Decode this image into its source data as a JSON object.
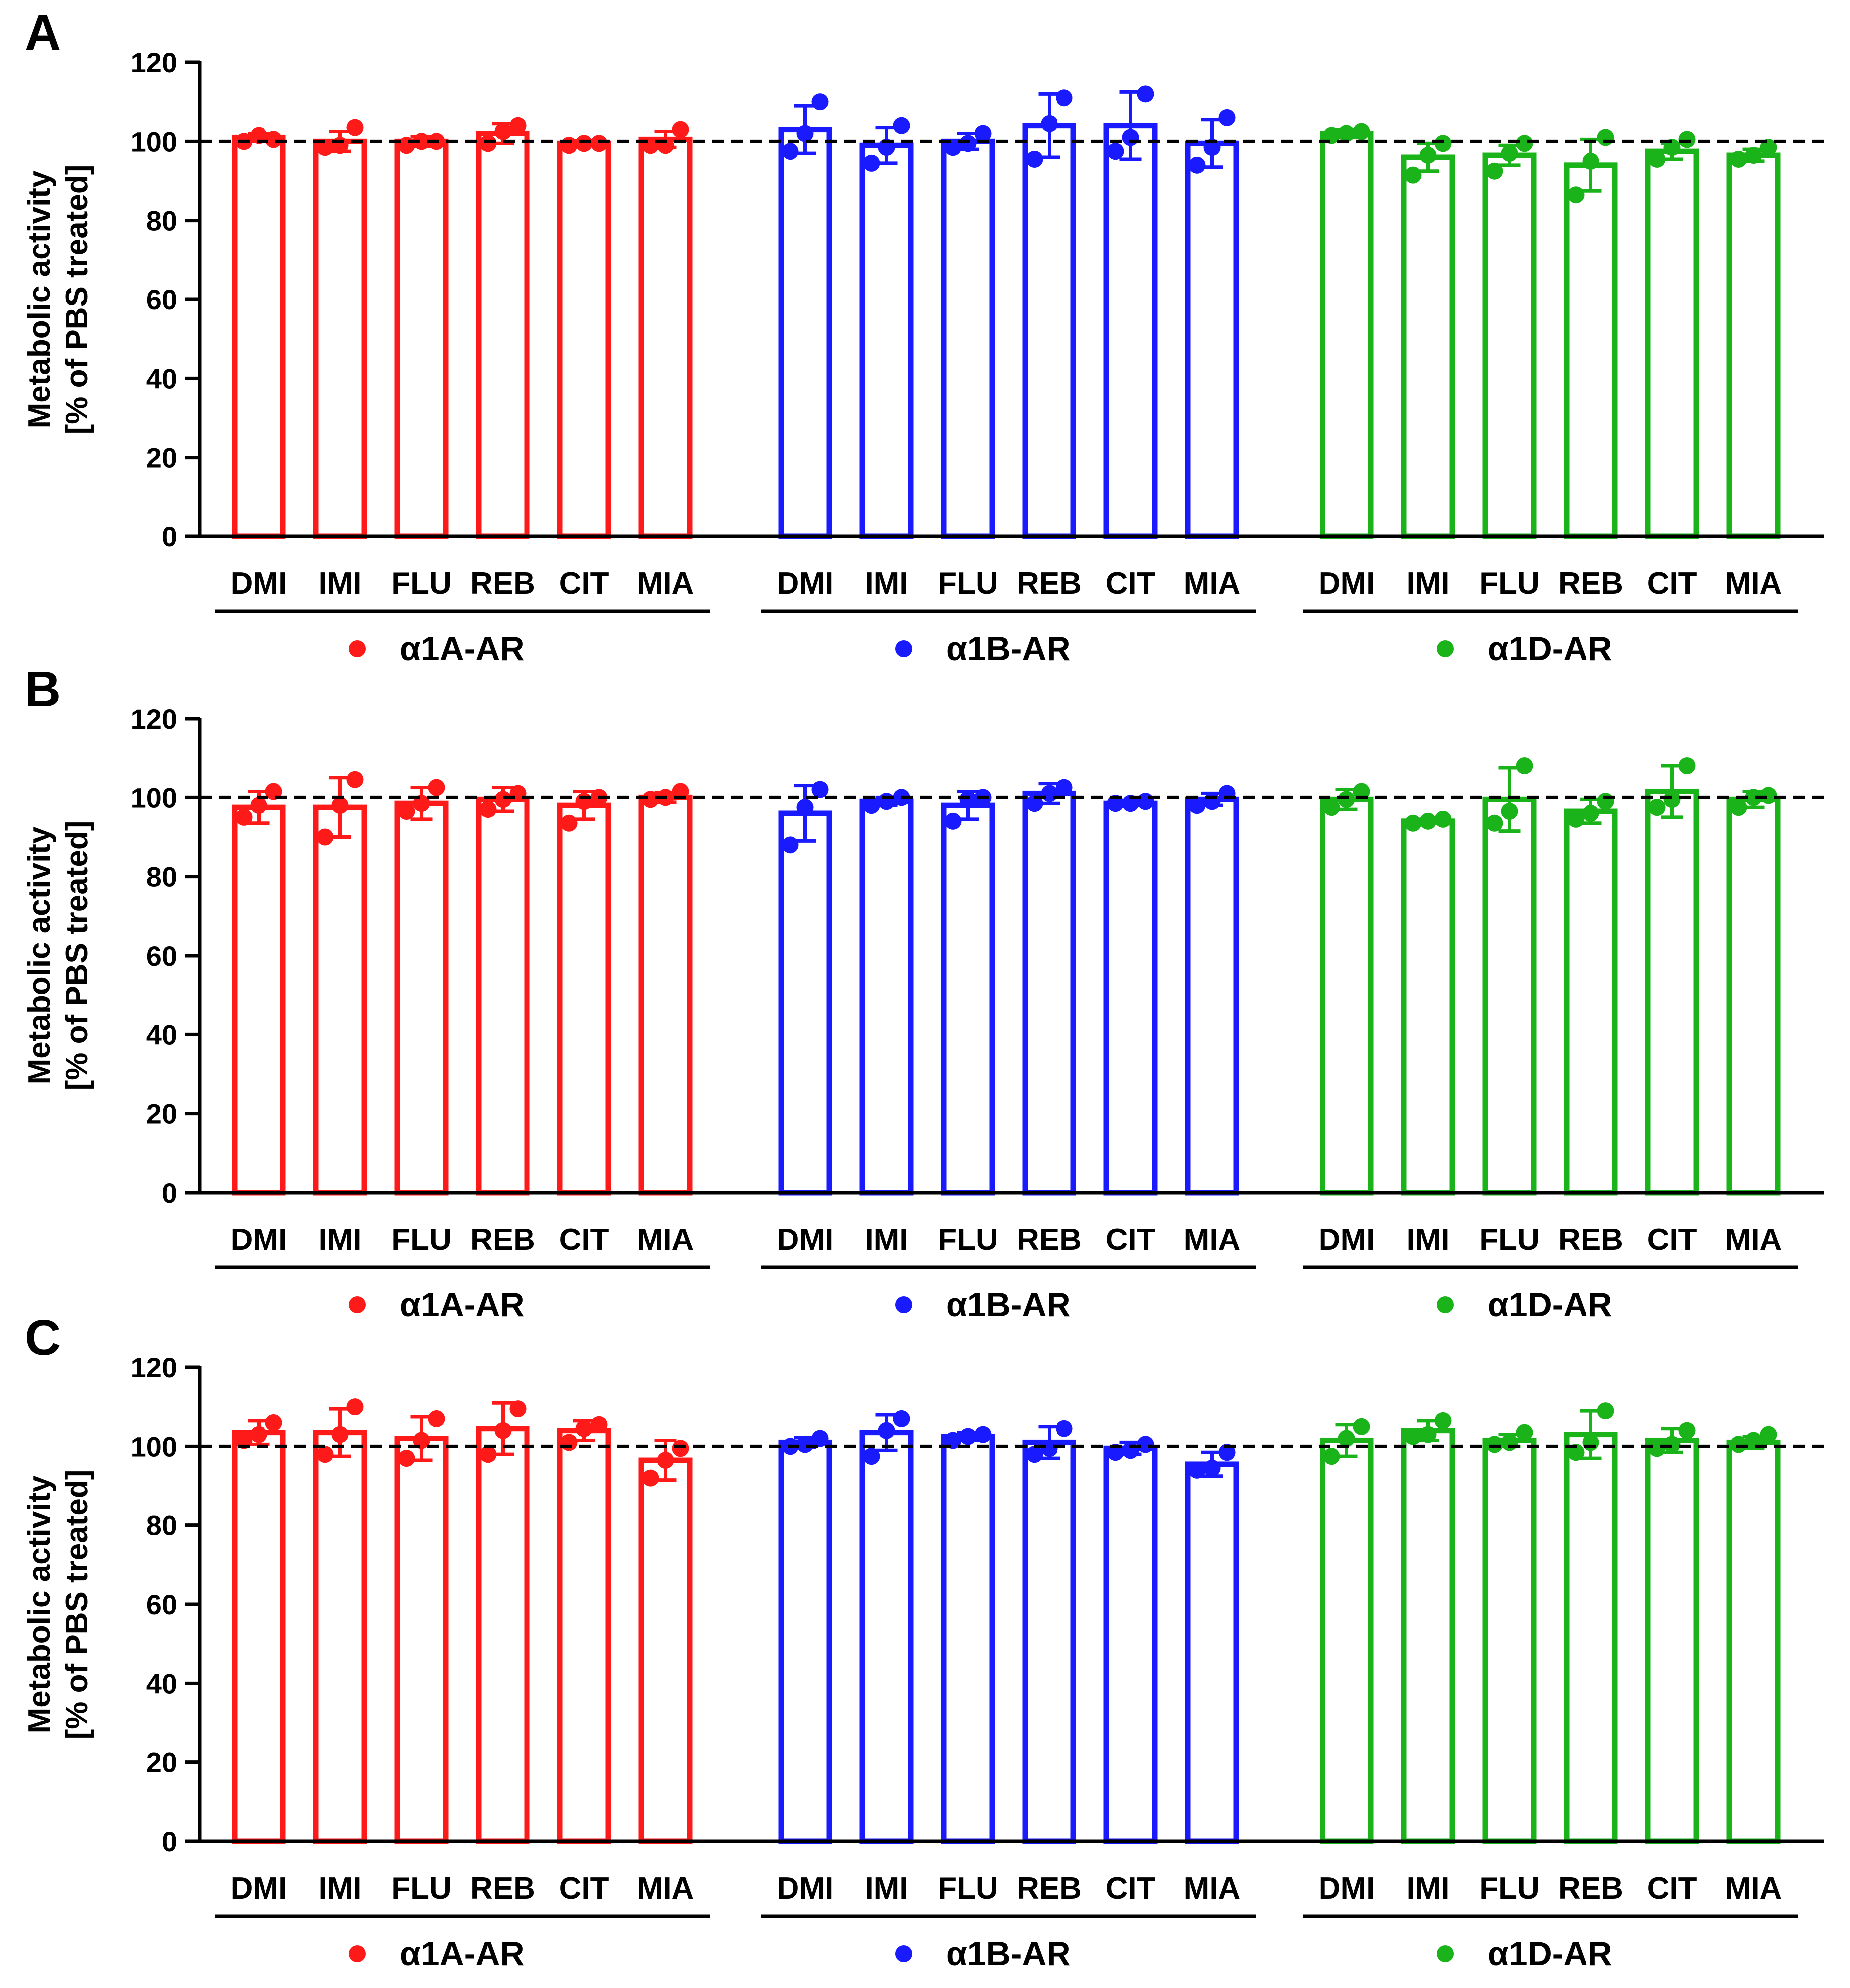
{
  "figure": {
    "groups": [
      "α1A-AR",
      "α1B-AR",
      "α1D-AR"
    ],
    "drugs": [
      "DMI",
      "IMI",
      "FLU",
      "REB",
      "CIT",
      "MIA"
    ],
    "colors": {
      "α1A-AR": "#ff1a1a",
      "α1B-AR": "#1a1aff",
      "α1D-AR": "#1ab41a"
    },
    "reference_line": 100
  },
  "chart_data": [
    {
      "panel": "A",
      "type": "bar",
      "ylabel_line1": "Metabolic activity",
      "ylabel_line2": "[% of PBS treated]",
      "ylim": [
        0,
        120
      ],
      "yticks": [
        "0",
        "20",
        "40",
        "60",
        "80",
        "100",
        "120"
      ],
      "series": [
        {
          "name": "α1A-AR",
          "values": [
            101,
            100,
            100,
            102,
            99.5,
            100.5
          ],
          "sd": [
            1,
            2.5,
            1.2,
            2.5,
            0.6,
            2
          ],
          "points": [
            [
              100,
              101.5,
              100.5
            ],
            [
              98.5,
              99,
              103.5
            ],
            [
              99,
              100,
              100
            ],
            [
              99.5,
              102.5,
              104
            ],
            [
              99,
              99.5,
              99.5
            ],
            [
              99,
              99,
              103
            ]
          ]
        },
        {
          "name": "α1B-AR",
          "values": [
            103,
            99,
            100,
            104,
            104,
            99.5
          ],
          "sd": [
            6,
            4.5,
            2,
            8,
            8.5,
            6
          ],
          "points": [
            [
              97.5,
              102,
              110
            ],
            [
              94.5,
              98.5,
              104
            ],
            [
              98.5,
              99.5,
              102
            ],
            [
              95.5,
              104.5,
              111
            ],
            [
              97.5,
              101,
              112
            ],
            [
              94,
              98.5,
              106
            ]
          ]
        },
        {
          "name": "α1D-AR",
          "values": [
            102,
            96,
            96.5,
            94,
            97.5,
            96.5
          ],
          "sd": [
            1,
            3.5,
            2.5,
            6.5,
            2,
            1.5
          ],
          "points": [
            [
              101.5,
              102,
              102.5
            ],
            [
              91.5,
              96.5,
              99.5
            ],
            [
              92.5,
              97,
              99.5
            ],
            [
              86.5,
              95,
              101
            ],
            [
              95.5,
              98.5,
              100.5
            ],
            [
              95.5,
              96.5,
              98.5
            ]
          ]
        }
      ],
      "group_labels": [
        "α1A-AR",
        "α1B-AR",
        "α1D-AR"
      ]
    },
    {
      "panel": "B",
      "type": "bar",
      "ylabel_line1": "Metabolic activity",
      "ylabel_line2": "[% of PBS treated]",
      "ylim": [
        0,
        120
      ],
      "yticks": [
        "0",
        "20",
        "40",
        "60",
        "80",
        "100",
        "120"
      ],
      "series": [
        {
          "name": "α1A-AR",
          "values": [
            97.5,
            97.5,
            98.5,
            99.5,
            98,
            100
          ],
          "sd": [
            4,
            7.5,
            4,
            3,
            3.5,
            1.2
          ],
          "points": [
            [
              95,
              98,
              101.5
            ],
            [
              90,
              98,
              104.5
            ],
            [
              96.5,
              98.5,
              102.5
            ],
            [
              97,
              99.5,
              101
            ],
            [
              93.5,
              99,
              100
            ],
            [
              99.5,
              100,
              101.5
            ]
          ]
        },
        {
          "name": "α1B-AR",
          "values": [
            96,
            99,
            98,
            101,
            98.5,
            99.5
          ],
          "sd": [
            7,
            1,
            3.5,
            2.5,
            0.5,
            1.5
          ],
          "points": [
            [
              88,
              97.5,
              102
            ],
            [
              98,
              99,
              100
            ],
            [
              94,
              99.5,
              100
            ],
            [
              98.5,
              101,
              102.5
            ],
            [
              98.5,
              98.5,
              99
            ],
            [
              98,
              99,
              101
            ]
          ]
        },
        {
          "name": "α1D-AR",
          "values": [
            99.5,
            94,
            99.5,
            96.5,
            101.5,
            99.5
          ],
          "sd": [
            2.5,
            0.5,
            8,
            3,
            6.5,
            2
          ],
          "points": [
            [
              97.5,
              99.5,
              101.5
            ],
            [
              93.5,
              94,
              94.5
            ],
            [
              93.5,
              96.5,
              108
            ],
            [
              94.5,
              96,
              99
            ],
            [
              97.5,
              99.5,
              108
            ],
            [
              97.5,
              100,
              100.5
            ]
          ]
        }
      ],
      "group_labels": [
        "α1A-AR",
        "α1B-AR",
        "α1D-AR"
      ]
    },
    {
      "panel": "C",
      "type": "bar",
      "ylabel_line1": "Metabolic activity",
      "ylabel_line2": "[% of PBS treated]",
      "ylim": [
        0,
        120
      ],
      "yticks": [
        "0",
        "20",
        "40",
        "60",
        "80",
        "100",
        "120"
      ],
      "series": [
        {
          "name": "α1A-AR",
          "values": [
            103.5,
            103.5,
            102,
            104.5,
            104,
            96.5
          ],
          "sd": [
            3,
            6,
            5.5,
            6.5,
            2.5,
            5
          ],
          "points": [
            [
              101.5,
              103,
              106
            ],
            [
              98,
              103,
              110
            ],
            [
              97,
              101.5,
              107
            ],
            [
              98,
              104,
              109.5
            ],
            [
              101,
              104.5,
              105.5
            ],
            [
              92,
              96.5,
              99.5
            ]
          ]
        },
        {
          "name": "α1B-AR",
          "values": [
            101,
            103.5,
            102.5,
            101,
            99.5,
            95.5
          ],
          "sd": [
            1.2,
            4.5,
            1,
            4,
            1.5,
            3
          ],
          "points": [
            [
              100,
              100.5,
              102
            ],
            [
              97.5,
              104,
              107
            ],
            [
              101.5,
              102.5,
              103
            ],
            [
              98,
              99.5,
              104.5
            ],
            [
              98.5,
              99,
              100.5
            ],
            [
              94,
              94.5,
              98.5
            ]
          ]
        },
        {
          "name": "α1D-AR",
          "values": [
            101.5,
            104,
            101.5,
            103,
            101.5,
            101
          ],
          "sd": [
            4,
            2.5,
            1.5,
            6,
            3,
            1.5
          ],
          "points": [
            [
              97.5,
              102,
              105
            ],
            [
              102.5,
              103,
              106.5
            ],
            [
              100.5,
              101,
              103.5
            ],
            [
              98.5,
              101,
              109
            ],
            [
              99.5,
              100.5,
              104
            ],
            [
              100.5,
              101.5,
              103
            ]
          ]
        }
      ],
      "group_labels": [
        "α1A-AR",
        "α1B-AR",
        "α1D-AR"
      ]
    }
  ]
}
